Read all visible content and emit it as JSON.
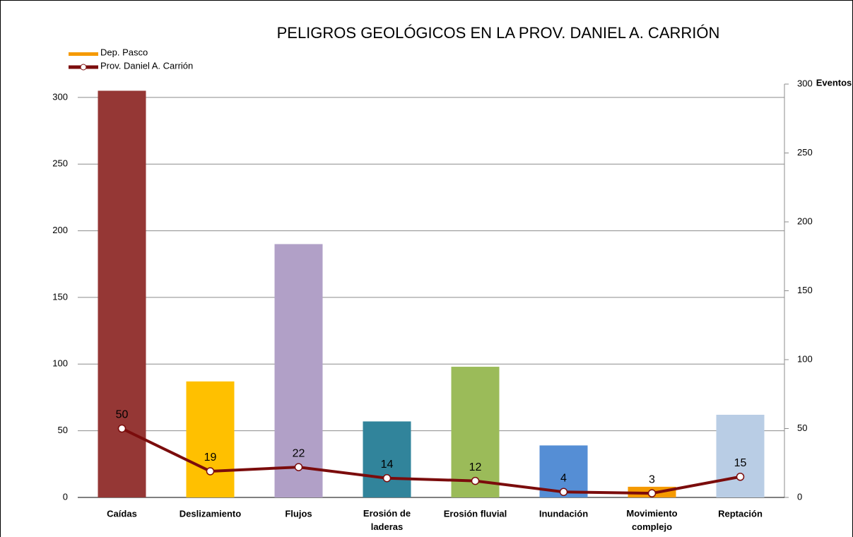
{
  "chart_data": {
    "type": "bar_line",
    "title": "PELIGROS GEOLÓGICOS EN LA PROV. DANIEL A. CARRIÓN",
    "y2_label": "Eventos",
    "categories": [
      "Caídas",
      "Deslizamiento",
      "Flujos",
      "Erosión de\nladeras",
      "Erosión fluvial",
      "Inundación",
      "Movimiento\ncomplejo",
      "Reptación"
    ],
    "series": [
      {
        "name": "Dep. Pasco",
        "type": "bar",
        "color": "#f59a00",
        "colors": [
          "#953735",
          "#ffc000",
          "#b1a0c7",
          "#31849b",
          "#9bbb59",
          "#558ed5",
          "#f59a00",
          "#b9cde5"
        ],
        "values": [
          305,
          87,
          190,
          57,
          98,
          39,
          8,
          62
        ]
      },
      {
        "name": "Prov. Daniel A. Carrión",
        "type": "line",
        "axis": "y2",
        "color": "#7b0c0c",
        "values": [
          50,
          19,
          22,
          14,
          12,
          4,
          3,
          15
        ]
      }
    ],
    "ylim": [
      0,
      310
    ],
    "yticks": [
      0,
      50,
      100,
      150,
      200,
      250,
      300
    ],
    "y2lim": [
      0,
      300
    ],
    "y2ticks": [
      0,
      50,
      100,
      150,
      200,
      250,
      300
    ],
    "grid": true
  }
}
